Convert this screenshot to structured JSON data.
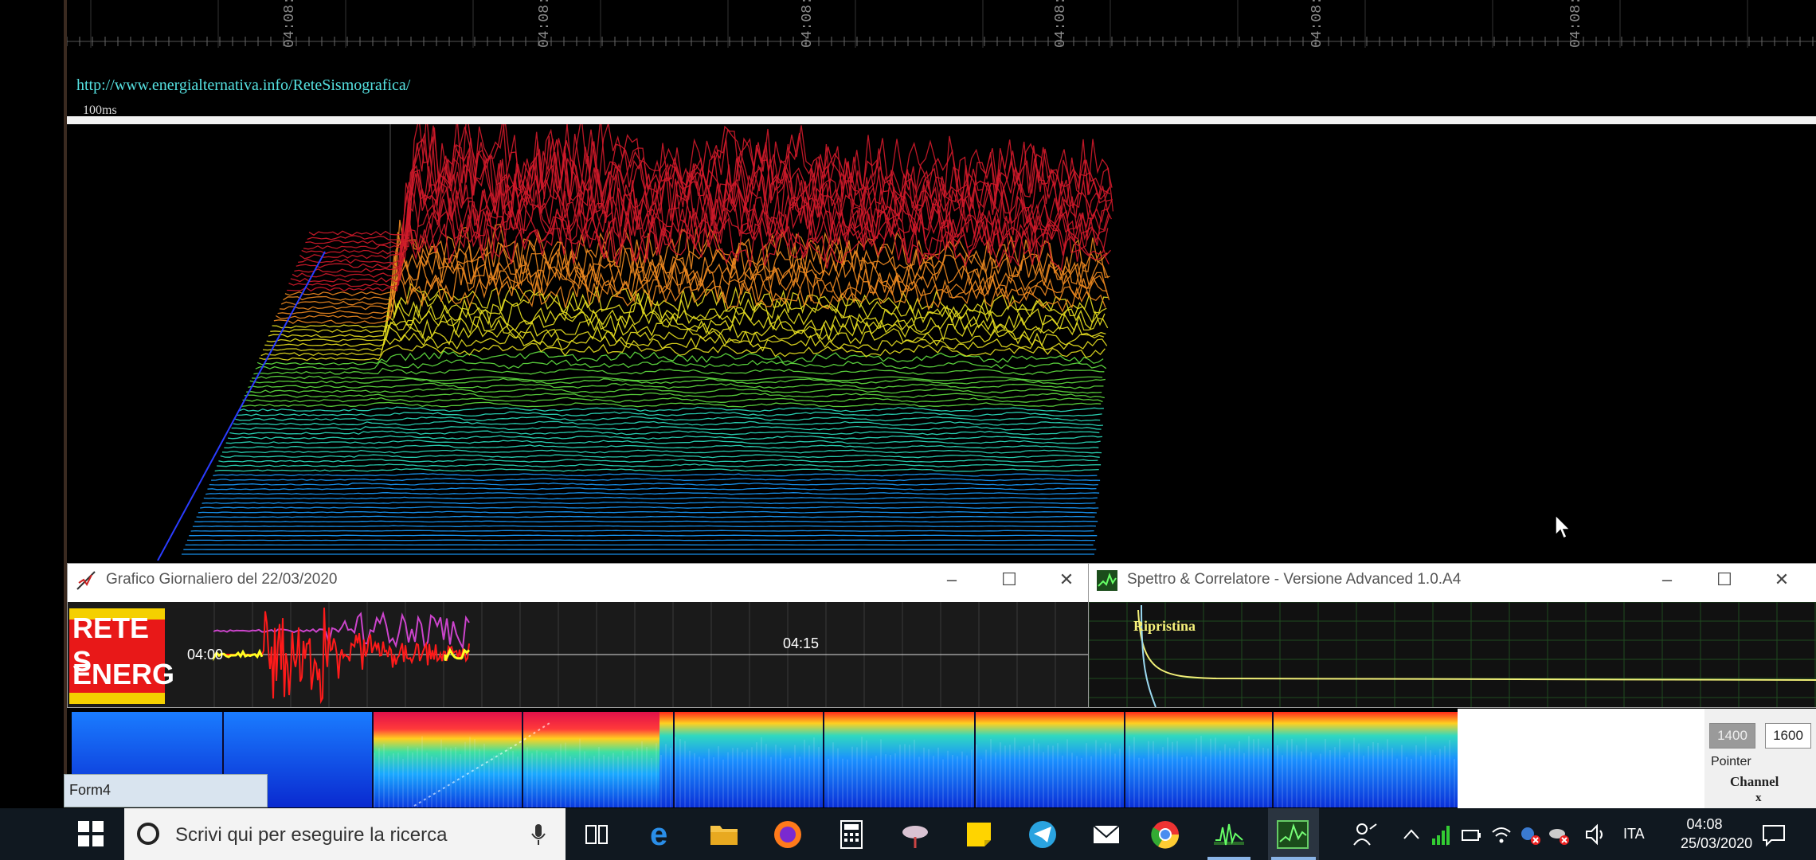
{
  "top_timeline": {
    "tick_labels": [
      "04:08:",
      "04:08:",
      "04:08:",
      "04:08:",
      "04:08:",
      "04:08:"
    ],
    "url": "http://www.energialternativa.info/ReteSismografica/",
    "scale_label": "100ms"
  },
  "window_grafico": {
    "title": "Grafico Giornaliero del 22/03/2020",
    "logo_line1": "RETE S",
    "logo_line2": "ENERG",
    "time_left": "04:00",
    "time_right": "04:15",
    "trace_colors": {
      "magenta": "#cc44cc",
      "red": "#ff1a1a",
      "yellow": "#ffff22"
    }
  },
  "window_spettro": {
    "title": "Spettro & Correlatore - Versione Advanced 1.0.A4",
    "button_label": "Ripristina",
    "curve_color": "#f2f078"
  },
  "right_panel": {
    "min_value": "1400",
    "max_value": "1600",
    "pointer_label": "Pointer",
    "channel_label": "Channel",
    "x_label": "x"
  },
  "form4": {
    "label": "Form4"
  },
  "taskbar": {
    "search_placeholder": "Scrivi qui per eseguire la ricerca",
    "apps": [
      "task-view",
      "edge",
      "file-explorer",
      "firefox",
      "calculator",
      "satellite-app",
      "sticky-notes",
      "telegram",
      "mail",
      "chrome",
      "seismograph",
      "spettro"
    ],
    "language": "ITA",
    "time": "04:08",
    "date": "25/03/2020"
  }
}
